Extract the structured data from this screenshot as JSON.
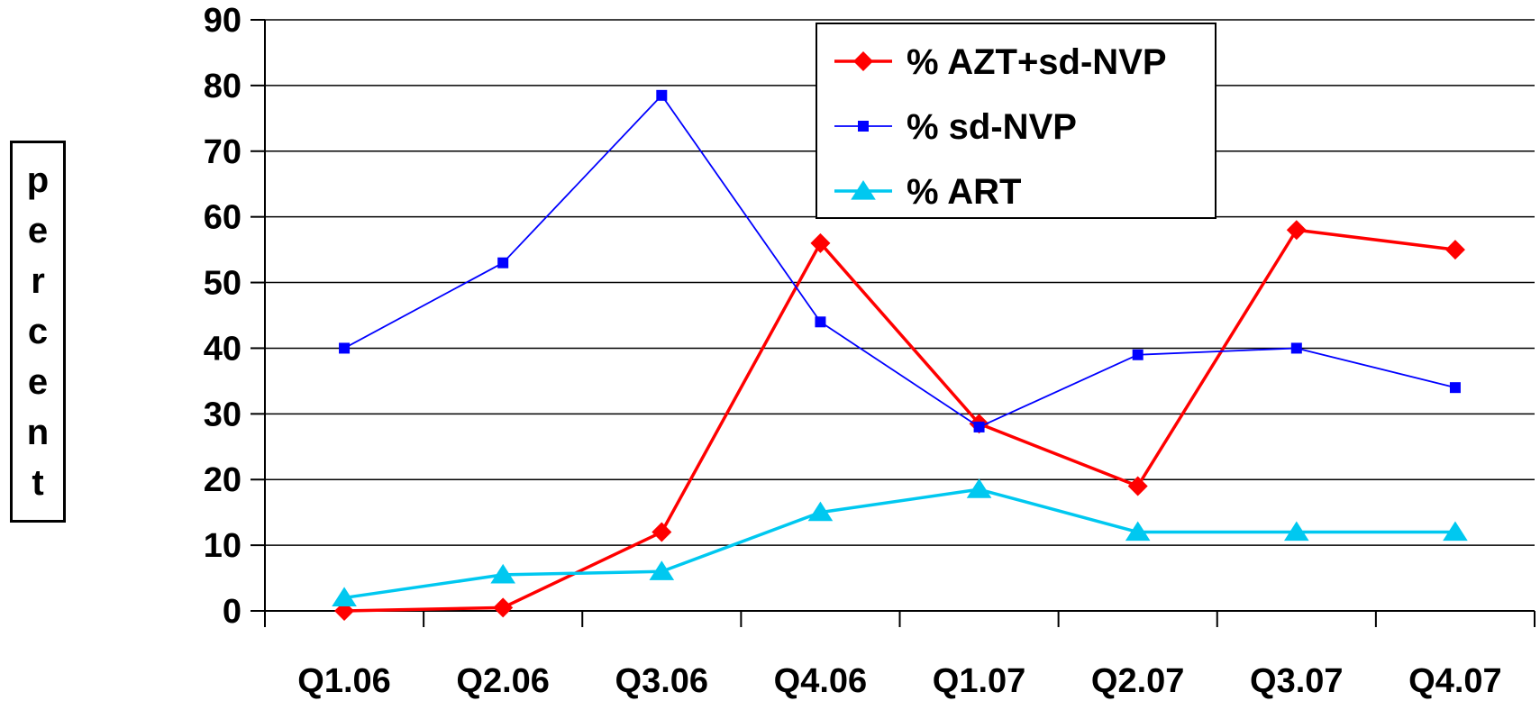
{
  "chart_data": {
    "type": "line",
    "categories": [
      "Q1.06",
      "Q2.06",
      "Q3.06",
      "Q4.06",
      "Q1.07",
      "Q2.07",
      "Q3.07",
      "Q4.07"
    ],
    "ylabel": "percent",
    "ylim": [
      0,
      90
    ],
    "yticks": [
      "0",
      "10",
      "20",
      "30",
      "40",
      "50",
      "60",
      "70",
      "80",
      "90"
    ],
    "grid": true,
    "legend_position": "top-right",
    "series": [
      {
        "name": "% AZT+sd-NVP",
        "color": "#ff0000",
        "marker": "diamond",
        "values": [
          0,
          0.5,
          12,
          56,
          28.5,
          19,
          58,
          55
        ]
      },
      {
        "name": "% sd-NVP",
        "color": "#0000ff",
        "marker": "square",
        "values": [
          40,
          53,
          78.5,
          44,
          28,
          39,
          40,
          34
        ]
      },
      {
        "name": "% ART",
        "color": "#00c8f0",
        "marker": "triangle",
        "values": [
          2,
          5.5,
          6,
          15,
          18.5,
          12,
          12,
          12
        ]
      }
    ]
  }
}
